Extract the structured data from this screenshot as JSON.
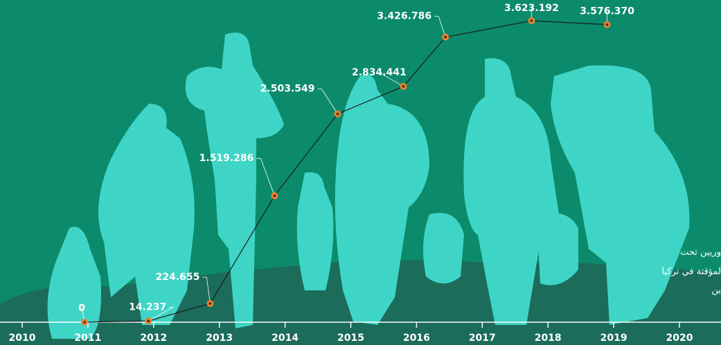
{
  "chart_data": {
    "type": "line",
    "x": [
      2010.95,
      2011.92,
      2012.86,
      2013.84,
      2014.8,
      2015.8,
      2016.44,
      2017.75,
      2018.9
    ],
    "values": [
      0,
      14237,
      224655,
      1519286,
      2503549,
      2834441,
      3426786,
      3623192,
      3576370
    ],
    "value_labels": [
      "0",
      "14.237",
      "224.655",
      "1.519.286",
      "2.503.549",
      "2.834.441",
      "3.426.786",
      "3.623.192",
      "3.576.370"
    ],
    "color": "#1a1a1a",
    "marker_color": "#e8822e",
    "xlim": [
      2010,
      2020.5
    ],
    "xticks": [
      2010,
      2011,
      2012,
      2013,
      2014,
      2015,
      2016,
      2017,
      2018,
      2019,
      2020
    ],
    "ylim": [
      0,
      3700000
    ],
    "side_text": [
      "وريين تحت",
      "لمؤقتة في تركيا",
      "ين"
    ]
  }
}
